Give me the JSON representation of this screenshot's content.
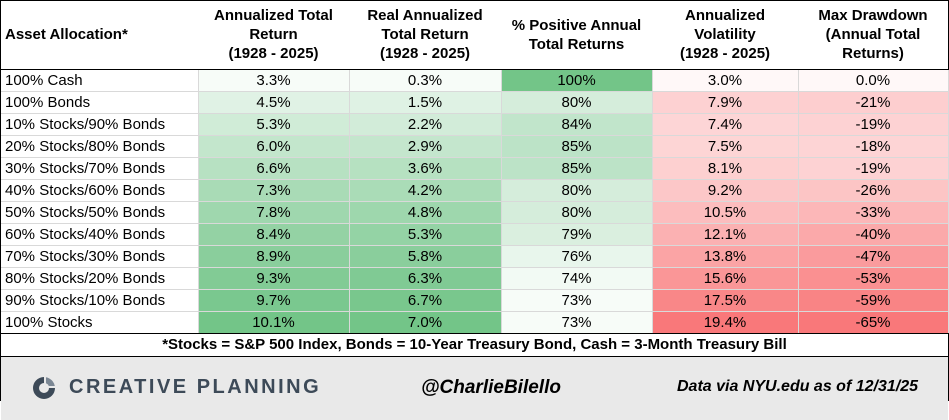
{
  "headers": [
    "Asset Allocation*",
    "Annualized Total Return (1928 - 2025)",
    "Real Annualized Total Return (1928 - 2025)",
    "% Positive Annual Total Returns",
    "Annualized Volatility (1928 - 2025)",
    "Max Drawdown (Annual Total Returns)"
  ],
  "header_lines": [
    [
      "Asset Allocation*"
    ],
    [
      "Annualized Total",
      "Return",
      "(1928 - 2025)"
    ],
    [
      "Real Annualized",
      "Total Return",
      "(1928 - 2025)"
    ],
    [
      "% Positive Annual",
      "Total Returns"
    ],
    [
      "Annualized",
      "Volatility",
      "(1928 - 2025)"
    ],
    [
      "Max Drawdown",
      "(Annual Total",
      "Returns)"
    ]
  ],
  "chart_data": {
    "type": "table",
    "columns": [
      "Asset Allocation*",
      "Annualized Total Return (1928 - 2025)",
      "Real Annualized Total Return (1928 - 2025)",
      "% Positive Annual Total Returns",
      "Annualized Volatility (1928 - 2025)",
      "Max Drawdown (Annual Total Returns)"
    ],
    "rows": [
      [
        "100% Cash",
        "3.3%",
        "0.3%",
        "100%",
        "3.0%",
        "0.0%"
      ],
      [
        "100% Bonds",
        "4.5%",
        "1.5%",
        "80%",
        "7.9%",
        "-21%"
      ],
      [
        "10% Stocks/90% Bonds",
        "5.3%",
        "2.2%",
        "84%",
        "7.4%",
        "-19%"
      ],
      [
        "20% Stocks/80% Bonds",
        "6.0%",
        "2.9%",
        "85%",
        "7.5%",
        "-18%"
      ],
      [
        "30% Stocks/70% Bonds",
        "6.6%",
        "3.6%",
        "85%",
        "8.1%",
        "-19%"
      ],
      [
        "40% Stocks/60% Bonds",
        "7.3%",
        "4.2%",
        "80%",
        "9.2%",
        "-26%"
      ],
      [
        "50% Stocks/50% Bonds",
        "7.8%",
        "4.8%",
        "80%",
        "10.5%",
        "-33%"
      ],
      [
        "60% Stocks/40% Bonds",
        "8.4%",
        "5.3%",
        "79%",
        "12.1%",
        "-40%"
      ],
      [
        "70% Stocks/30% Bonds",
        "8.9%",
        "5.8%",
        "76%",
        "13.8%",
        "-47%"
      ],
      [
        "80% Stocks/20% Bonds",
        "9.3%",
        "6.3%",
        "74%",
        "15.6%",
        "-53%"
      ],
      [
        "90% Stocks/10% Bonds",
        "9.7%",
        "6.7%",
        "73%",
        "17.5%",
        "-59%"
      ],
      [
        "100% Stocks",
        "10.1%",
        "7.0%",
        "73%",
        "19.4%",
        "-65%"
      ]
    ],
    "values": {
      "annualized_total_return": [
        3.3,
        4.5,
        5.3,
        6.0,
        6.6,
        7.3,
        7.8,
        8.4,
        8.9,
        9.3,
        9.7,
        10.1
      ],
      "real_annualized_total_return": [
        0.3,
        1.5,
        2.2,
        2.9,
        3.6,
        4.2,
        4.8,
        5.3,
        5.8,
        6.3,
        6.7,
        7.0
      ],
      "pct_positive_annual_returns": [
        100,
        80,
        84,
        85,
        85,
        80,
        80,
        79,
        76,
        74,
        73,
        73
      ],
      "annualized_volatility": [
        3.0,
        7.9,
        7.4,
        7.5,
        8.1,
        9.2,
        10.5,
        12.1,
        13.8,
        15.6,
        17.5,
        19.4
      ],
      "max_drawdown": [
        0.0,
        -21,
        -19,
        -18,
        -19,
        -26,
        -33,
        -40,
        -47,
        -53,
        -59,
        -65
      ]
    },
    "colors": {
      "good": "#63be7b",
      "bad": "#f8696b",
      "neutral": "#ffffff"
    }
  },
  "footnote": "*Stocks = S&P 500 Index, Bonds = 10-Year Treasury Bond, Cash = 3-Month Treasury Bill",
  "footer": {
    "logo_text": "CREATIVE PLANNING",
    "logo_icon": "creative-planning-logo-icon",
    "handle": "@CharlieBilello",
    "source": "Data via NYU.edu as of 12/31/25"
  }
}
